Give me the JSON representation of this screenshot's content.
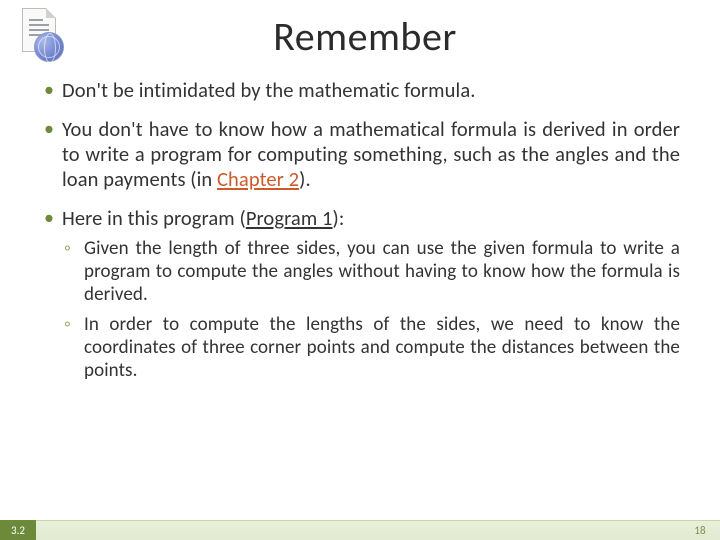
{
  "colors": {
    "bullet": "#6d8a3a",
    "sub_bullet": "#9aad6b",
    "footer_left_bg": "#6d8a3a",
    "footer_bar_bg_top": "#e9efda",
    "footer_bar_bg_bottom": "#e2ead0",
    "footer_page_color": "#7c9146",
    "link_chapter": "#cc5a2b",
    "text": "#333333",
    "background": "#ffffff"
  },
  "typography": {
    "title_fontsize": 40,
    "body_fontsize": 20.5,
    "sub_fontsize": 19,
    "footer_fontsize": 11,
    "font_family": "Calibri"
  },
  "title": "Remember",
  "bullets": {
    "b1": "Don't be intimidated by the mathematic formula.",
    "b2_pre": "You don't have to know how a mathematical formula is derived in order to write a program for computing something, such as the angles and the loan payments (in ",
    "b2_link": "Chapter 2",
    "b2_post": ").",
    "b3_pre": "Here in this program (",
    "b3_link": "Program 1",
    "b3_post": "):"
  },
  "sub": {
    "s1": "Given the length of three sides, you can use the given formula to write a program to compute the angles without having to know how the formula is derived.",
    "s2": "In order to compute the lengths of the sides, we need to know the coordinates of three corner points and compute the distances between the points."
  },
  "footer": {
    "section": "3.2",
    "page": "18"
  }
}
